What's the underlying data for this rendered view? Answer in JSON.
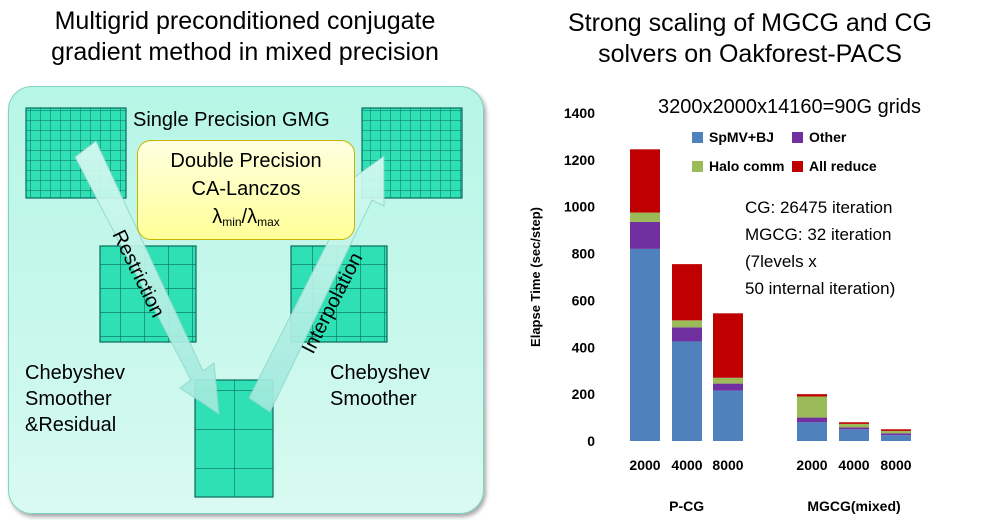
{
  "left": {
    "title_line1": "Multigrid preconditioned conjugate",
    "title_line2": "gradient method in mixed precision",
    "single_precision": "Single Precision GMG",
    "double_precision_line1": "Double Precision",
    "double_precision_line2": "CA-Lanczos",
    "lambda_symbol": "λ",
    "lambda_min_sub": "min",
    "lambda_slash": "/",
    "lambda_max_sub": "max",
    "restriction": "Restriction",
    "interpolation": "Interpolation",
    "left_smoother_line1": "Chebyshev",
    "left_smoother_line2": "Smoother",
    "left_smoother_line3": "&Residual",
    "right_smoother_line1": "Chebyshev",
    "right_smoother_line2": "Smoother",
    "colors": {
      "grid_fill": "#2ee0b4",
      "grid_line": "#0b6b5e",
      "panel": "#b6f6e6",
      "arrow": "#b6f4ea",
      "yellow": "#ffff99"
    }
  },
  "right": {
    "title_line1": "Strong scaling of MGCG and CG",
    "title_line2": "solvers on Oakforest-PACS",
    "grid_note": "3200x2000x14160=90G grids",
    "note_line1": "CG: 26475 iteration",
    "note_line2": "MGCG: 32 iteration",
    "note_line3": "(7levels x",
    "note_line4": "50 internal iteration)"
  },
  "chart_data": {
    "type": "bar",
    "stacked": true,
    "ylabel": "Elapse Time (sec/step)",
    "xlabel": "",
    "ylim": [
      0,
      1400
    ],
    "yticks": [
      0,
      200,
      400,
      600,
      800,
      1000,
      1200,
      1400
    ],
    "categories": [
      "2000",
      "4000",
      "8000",
      "2000",
      "4000",
      "8000"
    ],
    "groups": [
      {
        "label": "P-CG",
        "members": [
          0,
          1,
          2
        ]
      },
      {
        "label": "MGCG(mixed)",
        "members": [
          3,
          4,
          5
        ]
      }
    ],
    "series": [
      {
        "name": "SpMV+BJ",
        "color": "#4f81bd",
        "values": [
          820,
          425,
          215,
          80,
          50,
          25
        ]
      },
      {
        "name": "Other",
        "color": "#7030a0",
        "values": [
          115,
          60,
          30,
          20,
          8,
          8
        ]
      },
      {
        "name": "Halo comm",
        "color": "#9bbb59",
        "values": [
          40,
          30,
          25,
          90,
          15,
          10
        ]
      },
      {
        "name": "All reduce",
        "color": "#c00000",
        "values": [
          270,
          240,
          275,
          10,
          7,
          7
        ]
      }
    ],
    "legend_position": "top"
  }
}
